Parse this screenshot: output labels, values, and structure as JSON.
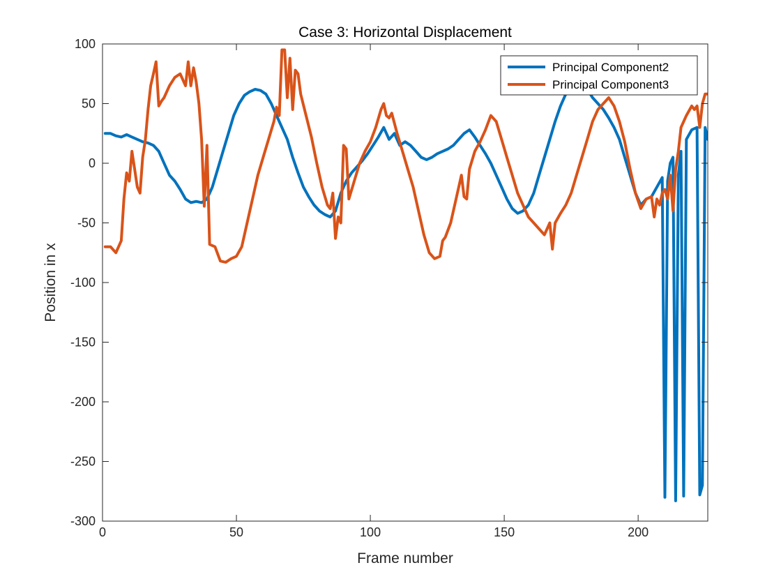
{
  "chart_data": {
    "type": "line",
    "title": "Case 3: Horizontal Displacement",
    "xlabel": "Frame number",
    "ylabel": "Position in x",
    "xlim": [
      0,
      226
    ],
    "ylim": [
      -300,
      100
    ],
    "xticks": [
      0,
      50,
      100,
      150,
      200
    ],
    "yticks": [
      -300,
      -250,
      -200,
      -150,
      -100,
      -50,
      0,
      50,
      100
    ],
    "grid": false,
    "legend_position": "top-right",
    "series": [
      {
        "name": "Principal Component2",
        "color": "#0072BD",
        "points": [
          [
            1,
            25
          ],
          [
            3,
            25
          ],
          [
            5,
            23
          ],
          [
            7,
            22
          ],
          [
            9,
            24
          ],
          [
            11,
            22
          ],
          [
            13,
            20
          ],
          [
            15,
            18
          ],
          [
            17,
            17
          ],
          [
            19,
            15
          ],
          [
            21,
            10
          ],
          [
            23,
            0
          ],
          [
            25,
            -10
          ],
          [
            27,
            -15
          ],
          [
            29,
            -22
          ],
          [
            31,
            -30
          ],
          [
            33,
            -33
          ],
          [
            35,
            -32
          ],
          [
            37,
            -33
          ],
          [
            39,
            -30
          ],
          [
            41,
            -20
          ],
          [
            43,
            -5
          ],
          [
            45,
            10
          ],
          [
            47,
            25
          ],
          [
            49,
            40
          ],
          [
            51,
            50
          ],
          [
            53,
            57
          ],
          [
            55,
            60
          ],
          [
            57,
            62
          ],
          [
            59,
            61
          ],
          [
            61,
            58
          ],
          [
            63,
            50
          ],
          [
            65,
            40
          ],
          [
            67,
            30
          ],
          [
            69,
            20
          ],
          [
            71,
            5
          ],
          [
            73,
            -8
          ],
          [
            75,
            -20
          ],
          [
            77,
            -28
          ],
          [
            79,
            -35
          ],
          [
            81,
            -40
          ],
          [
            83,
            -43
          ],
          [
            85,
            -45
          ],
          [
            87,
            -40
          ],
          [
            89,
            -25
          ],
          [
            91,
            -15
          ],
          [
            93,
            -8
          ],
          [
            95,
            -3
          ],
          [
            97,
            2
          ],
          [
            99,
            8
          ],
          [
            101,
            15
          ],
          [
            103,
            22
          ],
          [
            105,
            30
          ],
          [
            107,
            20
          ],
          [
            109,
            25
          ],
          [
            111,
            15
          ],
          [
            113,
            18
          ],
          [
            115,
            15
          ],
          [
            117,
            10
          ],
          [
            119,
            5
          ],
          [
            121,
            3
          ],
          [
            123,
            5
          ],
          [
            125,
            8
          ],
          [
            127,
            10
          ],
          [
            129,
            12
          ],
          [
            131,
            15
          ],
          [
            133,
            20
          ],
          [
            135,
            25
          ],
          [
            137,
            28
          ],
          [
            139,
            22
          ],
          [
            141,
            15
          ],
          [
            143,
            8
          ],
          [
            145,
            0
          ],
          [
            147,
            -10
          ],
          [
            149,
            -20
          ],
          [
            151,
            -30
          ],
          [
            153,
            -38
          ],
          [
            155,
            -42
          ],
          [
            157,
            -40
          ],
          [
            159,
            -35
          ],
          [
            161,
            -25
          ],
          [
            163,
            -10
          ],
          [
            165,
            5
          ],
          [
            167,
            20
          ],
          [
            169,
            35
          ],
          [
            171,
            48
          ],
          [
            173,
            58
          ],
          [
            175,
            65
          ],
          [
            177,
            70
          ],
          [
            179,
            68
          ],
          [
            181,
            62
          ],
          [
            183,
            55
          ],
          [
            185,
            50
          ],
          [
            187,
            45
          ],
          [
            189,
            38
          ],
          [
            191,
            30
          ],
          [
            193,
            20
          ],
          [
            195,
            5
          ],
          [
            197,
            -10
          ],
          [
            199,
            -25
          ],
          [
            201,
            -35
          ],
          [
            203,
            -30
          ],
          [
            205,
            -28
          ],
          [
            207,
            -20
          ],
          [
            209,
            -12
          ],
          [
            210,
            -280
          ],
          [
            211,
            -15
          ],
          [
            212,
            0
          ],
          [
            213,
            5
          ],
          [
            214,
            -283
          ],
          [
            215,
            -10
          ],
          [
            216,
            10
          ],
          [
            217,
            -279
          ],
          [
            218,
            20
          ],
          [
            220,
            28
          ],
          [
            222,
            30
          ],
          [
            223,
            -278
          ],
          [
            224,
            -270
          ],
          [
            225,
            30
          ],
          [
            226,
            20
          ]
        ]
      },
      {
        "name": "Principal Component3",
        "color": "#D95319",
        "points": [
          [
            1,
            -70
          ],
          [
            3,
            -70
          ],
          [
            5,
            -75
          ],
          [
            7,
            -65
          ],
          [
            8,
            -30
          ],
          [
            9,
            -8
          ],
          [
            10,
            -15
          ],
          [
            11,
            10
          ],
          [
            12,
            -5
          ],
          [
            13,
            -20
          ],
          [
            14,
            -25
          ],
          [
            15,
            5
          ],
          [
            16,
            20
          ],
          [
            17,
            45
          ],
          [
            18,
            65
          ],
          [
            19,
            75
          ],
          [
            20,
            85
          ],
          [
            21,
            48
          ],
          [
            22,
            52
          ],
          [
            23,
            55
          ],
          [
            25,
            65
          ],
          [
            27,
            72
          ],
          [
            29,
            75
          ],
          [
            31,
            65
          ],
          [
            32,
            85
          ],
          [
            33,
            65
          ],
          [
            34,
            80
          ],
          [
            35,
            68
          ],
          [
            36,
            50
          ],
          [
            37,
            20
          ],
          [
            38,
            -36
          ],
          [
            39,
            15
          ],
          [
            40,
            -68
          ],
          [
            42,
            -70
          ],
          [
            44,
            -82
          ],
          [
            46,
            -83
          ],
          [
            48,
            -80
          ],
          [
            50,
            -78
          ],
          [
            52,
            -70
          ],
          [
            54,
            -50
          ],
          [
            56,
            -30
          ],
          [
            58,
            -10
          ],
          [
            60,
            5
          ],
          [
            62,
            20
          ],
          [
            64,
            35
          ],
          [
            65,
            47
          ],
          [
            66,
            40
          ],
          [
            67,
            95
          ],
          [
            68,
            95
          ],
          [
            69,
            55
          ],
          [
            70,
            88
          ],
          [
            71,
            45
          ],
          [
            72,
            78
          ],
          [
            73,
            75
          ],
          [
            74,
            58
          ],
          [
            76,
            40
          ],
          [
            78,
            22
          ],
          [
            80,
            0
          ],
          [
            82,
            -20
          ],
          [
            84,
            -35
          ],
          [
            85,
            -38
          ],
          [
            86,
            -25
          ],
          [
            87,
            -63
          ],
          [
            88,
            -45
          ],
          [
            89,
            -50
          ],
          [
            90,
            15
          ],
          [
            91,
            12
          ],
          [
            92,
            -30
          ],
          [
            94,
            -15
          ],
          [
            96,
            0
          ],
          [
            98,
            10
          ],
          [
            100,
            18
          ],
          [
            102,
            30
          ],
          [
            104,
            45
          ],
          [
            105,
            50
          ],
          [
            106,
            40
          ],
          [
            107,
            38
          ],
          [
            108,
            42
          ],
          [
            110,
            25
          ],
          [
            112,
            10
          ],
          [
            114,
            -5
          ],
          [
            116,
            -20
          ],
          [
            118,
            -40
          ],
          [
            120,
            -60
          ],
          [
            122,
            -75
          ],
          [
            124,
            -80
          ],
          [
            126,
            -78
          ],
          [
            127,
            -65
          ],
          [
            128,
            -62
          ],
          [
            130,
            -50
          ],
          [
            132,
            -30
          ],
          [
            134,
            -10
          ],
          [
            135,
            -28
          ],
          [
            136,
            -30
          ],
          [
            137,
            -5
          ],
          [
            139,
            10
          ],
          [
            141,
            18
          ],
          [
            143,
            28
          ],
          [
            145,
            40
          ],
          [
            147,
            35
          ],
          [
            149,
            20
          ],
          [
            151,
            5
          ],
          [
            153,
            -10
          ],
          [
            155,
            -25
          ],
          [
            157,
            -35
          ],
          [
            159,
            -45
          ],
          [
            161,
            -50
          ],
          [
            163,
            -55
          ],
          [
            165,
            -60
          ],
          [
            166,
            -55
          ],
          [
            167,
            -50
          ],
          [
            168,
            -72
          ],
          [
            169,
            -50
          ],
          [
            171,
            -42
          ],
          [
            173,
            -35
          ],
          [
            175,
            -25
          ],
          [
            177,
            -10
          ],
          [
            179,
            5
          ],
          [
            181,
            20
          ],
          [
            183,
            35
          ],
          [
            185,
            45
          ],
          [
            187,
            50
          ],
          [
            189,
            55
          ],
          [
            191,
            48
          ],
          [
            193,
            35
          ],
          [
            195,
            18
          ],
          [
            197,
            -5
          ],
          [
            199,
            -25
          ],
          [
            201,
            -38
          ],
          [
            203,
            -30
          ],
          [
            205,
            -28
          ],
          [
            206,
            -45
          ],
          [
            207,
            -30
          ],
          [
            208,
            -35
          ],
          [
            209,
            -25
          ],
          [
            210,
            -22
          ],
          [
            211,
            -30
          ],
          [
            212,
            -10
          ],
          [
            213,
            -40
          ],
          [
            214,
            -5
          ],
          [
            215,
            10
          ],
          [
            216,
            30
          ],
          [
            218,
            40
          ],
          [
            220,
            48
          ],
          [
            221,
            45
          ],
          [
            222,
            48
          ],
          [
            223,
            30
          ],
          [
            224,
            50
          ],
          [
            225,
            58
          ],
          [
            226,
            58
          ]
        ]
      }
    ]
  }
}
